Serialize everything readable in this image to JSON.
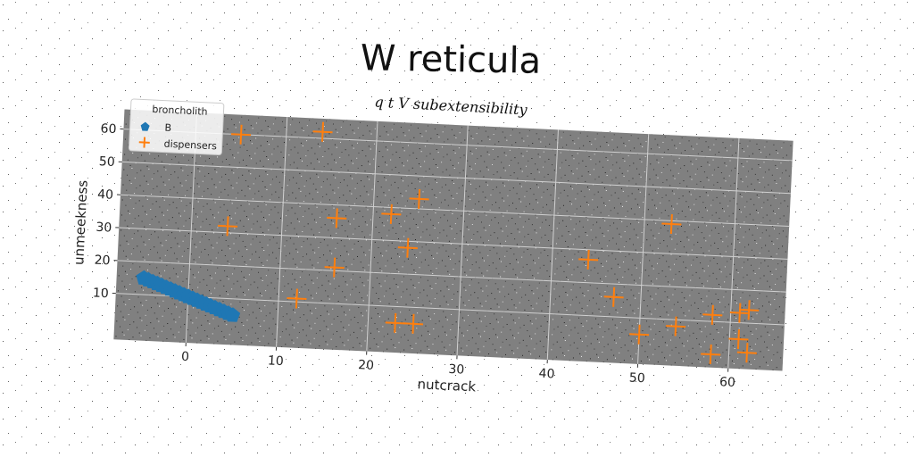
{
  "chart_data": {
    "type": "scatter",
    "title": "W reticula",
    "subtitle": "q t V subextensibility",
    "xlabel": "nutcrack",
    "ylabel": "unmeekness",
    "xlim": [
      -8,
      66
    ],
    "ylim": [
      -4,
      66
    ],
    "xticks": [
      0,
      10,
      20,
      30,
      40,
      50,
      60
    ],
    "yticks": [
      10,
      20,
      30,
      40,
      50,
      60
    ],
    "grid": true,
    "legend": {
      "title": "broncholith",
      "placement": "top-left"
    },
    "series": [
      {
        "name": "B",
        "marker": "pentagon",
        "color": "#1f77b4",
        "x": [
          -5,
          -4.5,
          -4,
          -3.5,
          -3,
          -2.5,
          -2,
          -1.5,
          -1,
          -0.5,
          0,
          0.5,
          1,
          1.5,
          2,
          2.5,
          3,
          3.5,
          4,
          4.5,
          5
        ],
        "y": [
          15,
          14.5,
          14,
          13.5,
          13,
          12.5,
          12,
          11.5,
          11,
          10.5,
          10,
          9.5,
          9,
          8.5,
          8,
          7.5,
          7,
          6.5,
          6,
          5.5,
          5
        ]
      },
      {
        "name": "dispensers",
        "marker": "plus",
        "color": "#ff7f0e",
        "x": [
          5,
          14,
          4,
          16,
          16,
          12,
          22,
          25,
          24,
          23,
          25,
          44,
          47,
          50,
          53,
          54,
          58,
          58,
          61,
          61,
          62,
          62
        ],
        "y": [
          60,
          62,
          32,
          36,
          21,
          11,
          38,
          43,
          28,
          5,
          5,
          27,
          16,
          5,
          39,
          8,
          12,
          0,
          5,
          13,
          1,
          14
        ]
      }
    ]
  }
}
